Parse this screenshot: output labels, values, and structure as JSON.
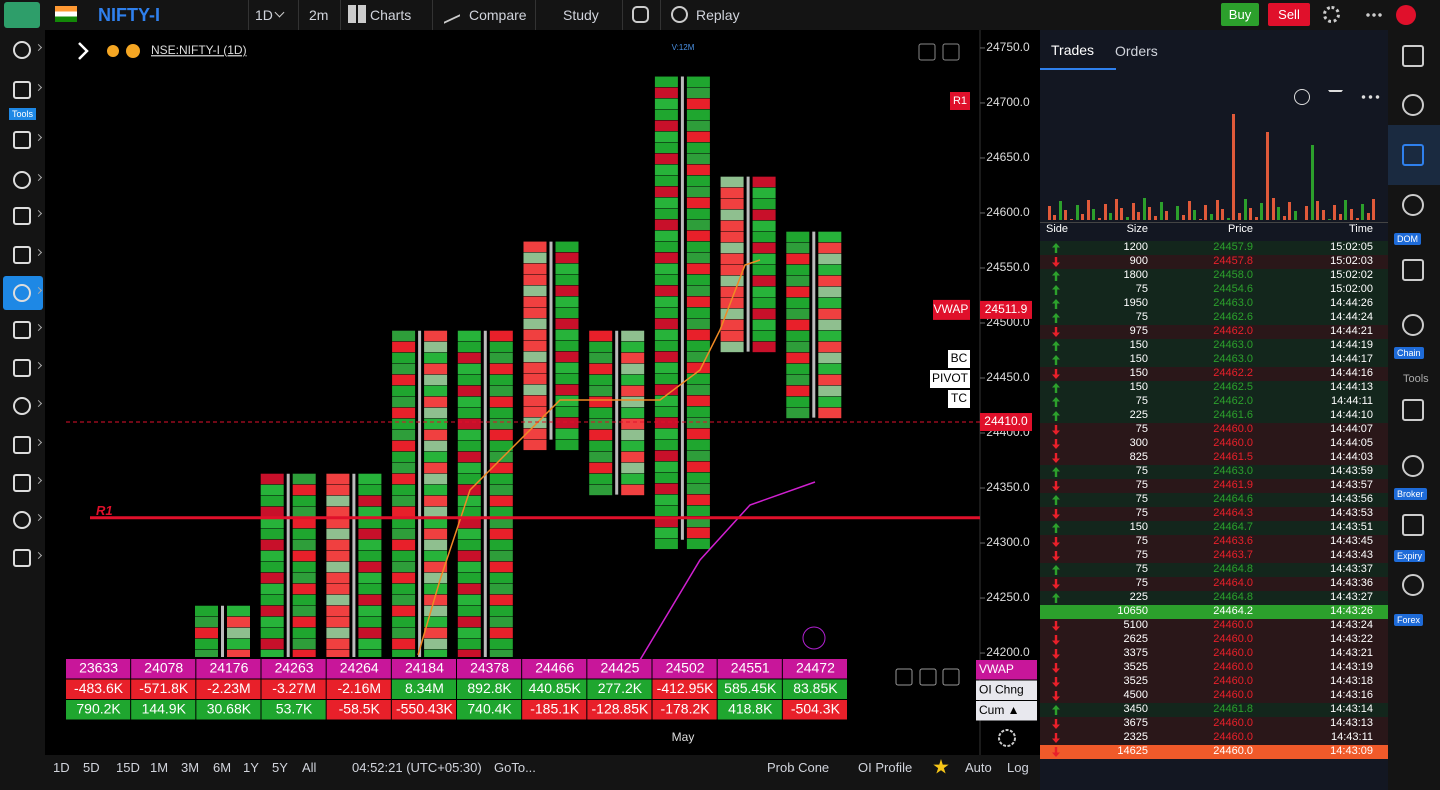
{
  "toolbar": {
    "symbol": "NIFTY-I",
    "interval": "1D",
    "timeframe": "2m",
    "charts": "Charts",
    "compare": "Compare",
    "study": "Study",
    "replay": "Replay",
    "buy": "Buy",
    "sell": "Sell"
  },
  "left_tools": {
    "label": "Tools"
  },
  "chart": {
    "symbol": "NSE:NIFTY-I (1D)",
    "ylim": [
      24196.4,
      24764.5
    ],
    "yticks": [
      {
        "value": 24750,
        "label": "24750.0"
      },
      {
        "value": 24700,
        "label": "24700.0"
      },
      {
        "value": 24650,
        "label": "24650.0"
      },
      {
        "value": 24600,
        "label": "24600.0"
      },
      {
        "value": 24550,
        "label": "24550.0"
      },
      {
        "value": 24500,
        "label": "24500.0"
      },
      {
        "value": 24450,
        "label": "24450.0"
      },
      {
        "value": 24400,
        "label": "24400.0"
      },
      {
        "value": 24350,
        "label": "24350.0"
      },
      {
        "value": 24300,
        "label": "24300.0"
      },
      {
        "value": 24250,
        "label": "24250.0"
      },
      {
        "value": 24200,
        "label": "24200.0"
      }
    ],
    "r1": {
      "label": "R1",
      "value": 24323
    },
    "r1_tag": "R1",
    "vwap": {
      "label": "VWAP",
      "value": 24511.9,
      "value_label": "24511.9"
    },
    "last": {
      "value": 24410,
      "label": "24410.0"
    },
    "pivot": [
      "BC",
      "PIVOT",
      "TC"
    ],
    "month": "May",
    "volume_note": "V:12M",
    "footprint": [
      {
        "high": 24243,
        "low": 24196
      },
      {
        "high": 24363,
        "low": 24196
      },
      {
        "high": 24363,
        "low": 24196
      },
      {
        "high": 24493,
        "low": 24196
      },
      {
        "high": 24493,
        "low": 24196
      },
      {
        "high": 24574,
        "low": 24394
      },
      {
        "high": 24493,
        "low": 24344
      },
      {
        "high": 24724,
        "low": 24303
      },
      {
        "high": 24633,
        "low": 24474
      },
      {
        "high": 24583,
        "low": 24414
      }
    ]
  },
  "summary": {
    "labels": [
      "VWAP",
      "OI Chng",
      "Cum ▲"
    ],
    "rows": [
      [
        23633,
        24078,
        24176,
        24263,
        24264,
        24184,
        24378,
        24466,
        24425,
        24502,
        24551,
        24472
      ],
      [
        "-483.6K",
        "-571.8K",
        "-2.23M",
        "-3.27M",
        "-2.16M",
        "8.34M",
        "892.8K",
        "440.85K",
        "277.2K",
        "-412.95K",
        "585.45K",
        "83.85K"
      ],
      [
        "790.2K",
        "144.9K",
        "30.68K",
        "53.7K",
        "-58.5K",
        "-550.43K",
        "740.4K",
        "-185.1K",
        "-128.85K",
        "-178.2K",
        "418.8K",
        "-504.3K"
      ]
    ]
  },
  "bottom": {
    "ranges": [
      "1D",
      "5D",
      "15D",
      "1M",
      "3M",
      "6M",
      "1Y",
      "5Y",
      "All"
    ],
    "clock": "04:52:21 (UTC+05:30)",
    "goto": "GoTo...",
    "tools": [
      "Prob Cone",
      "OI Profile"
    ],
    "auto": "Auto",
    "log": "Log"
  },
  "trades": {
    "tabs": [
      "Trades",
      "Orders"
    ],
    "headers": [
      "Side",
      "Size",
      "Price",
      "Time"
    ],
    "rows": [
      {
        "side": "up",
        "size": 1200,
        "price": "24457.9",
        "time": "15:02:05"
      },
      {
        "side": "down",
        "size": 900,
        "price": "24457.8",
        "time": "15:02:03"
      },
      {
        "side": "up",
        "size": 1800,
        "price": "24458.0",
        "time": "15:02:02"
      },
      {
        "side": "up",
        "size": 75,
        "price": "24454.6",
        "time": "15:02:00"
      },
      {
        "side": "up",
        "size": 1950,
        "price": "24463.0",
        "time": "14:44:26"
      },
      {
        "side": "up",
        "size": 75,
        "price": "24462.6",
        "time": "14:44:24"
      },
      {
        "side": "down",
        "size": 975,
        "price": "24462.0",
        "time": "14:44:21"
      },
      {
        "side": "up",
        "size": 150,
        "price": "24463.0",
        "time": "14:44:19"
      },
      {
        "side": "up",
        "size": 150,
        "price": "24463.0",
        "time": "14:44:17"
      },
      {
        "side": "down",
        "size": 150,
        "price": "24462.2",
        "time": "14:44:16"
      },
      {
        "side": "up",
        "size": 150,
        "price": "24462.5",
        "time": "14:44:13"
      },
      {
        "side": "up",
        "size": 75,
        "price": "24462.0",
        "time": "14:44:11"
      },
      {
        "side": "up",
        "size": 225,
        "price": "24461.6",
        "time": "14:44:10"
      },
      {
        "side": "down",
        "size": 75,
        "price": "24460.0",
        "time": "14:44:07"
      },
      {
        "side": "down",
        "size": 300,
        "price": "24460.0",
        "time": "14:44:05"
      },
      {
        "side": "down",
        "size": 825,
        "price": "24461.5",
        "time": "14:44:03"
      },
      {
        "side": "up",
        "size": 75,
        "price": "24463.0",
        "time": "14:43:59"
      },
      {
        "side": "down",
        "size": 75,
        "price": "24461.9",
        "time": "14:43:57"
      },
      {
        "side": "up",
        "size": 75,
        "price": "24464.6",
        "time": "14:43:56"
      },
      {
        "side": "down",
        "size": 75,
        "price": "24464.3",
        "time": "14:43:53"
      },
      {
        "side": "up",
        "size": 150,
        "price": "24464.7",
        "time": "14:43:51"
      },
      {
        "side": "down",
        "size": 75,
        "price": "24463.6",
        "time": "14:43:45"
      },
      {
        "side": "down",
        "size": 75,
        "price": "24463.7",
        "time": "14:43:43"
      },
      {
        "side": "up",
        "size": 75,
        "price": "24464.8",
        "time": "14:43:37"
      },
      {
        "side": "down",
        "size": 75,
        "price": "24464.0",
        "time": "14:43:36"
      },
      {
        "side": "up",
        "size": 225,
        "price": "24464.8",
        "time": "14:43:27"
      },
      {
        "side": "up",
        "size": 10650,
        "price": "24464.2",
        "time": "14:43:26"
      },
      {
        "side": "down",
        "size": 5100,
        "price": "24460.0",
        "time": "14:43:24"
      },
      {
        "side": "down",
        "size": 2625,
        "price": "24460.0",
        "time": "14:43:22"
      },
      {
        "side": "down",
        "size": 3375,
        "price": "24460.0",
        "time": "14:43:21"
      },
      {
        "side": "down",
        "size": 3525,
        "price": "24460.0",
        "time": "14:43:19"
      },
      {
        "side": "down",
        "size": 3525,
        "price": "24460.0",
        "time": "14:43:18"
      },
      {
        "side": "down",
        "size": 4500,
        "price": "24460.0",
        "time": "14:43:16"
      },
      {
        "side": "up",
        "size": 3450,
        "price": "24461.8",
        "time": "14:43:14"
      },
      {
        "side": "down",
        "size": 3675,
        "price": "24460.0",
        "time": "14:43:13"
      },
      {
        "side": "down",
        "size": 2325,
        "price": "24460.0",
        "time": "14:43:11"
      },
      {
        "side": "down",
        "size": 14625,
        "price": "24460.0",
        "time": "14:43:09"
      }
    ]
  },
  "right_sidebar": {
    "labels": [
      "DOM",
      "Chain",
      "Tools",
      "Broker",
      "Expiry",
      "Forex"
    ]
  }
}
